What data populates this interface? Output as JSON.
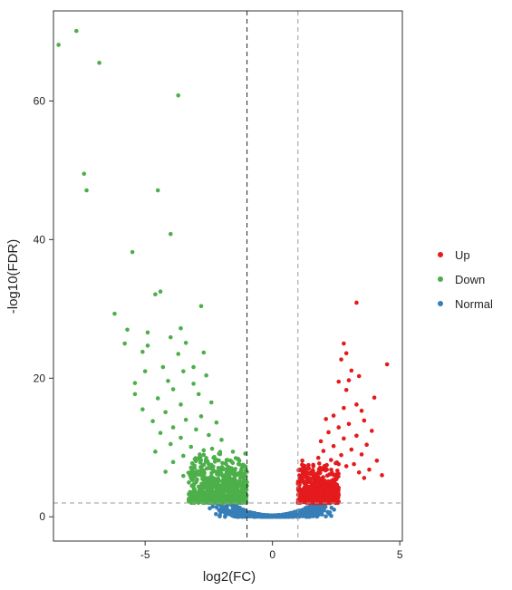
{
  "chart_data": {
    "type": "scatter",
    "title": "",
    "xlabel": "log2(FC)",
    "ylabel": "-log10(FDR)",
    "xlim": [
      -8.6,
      5.1
    ],
    "ylim": [
      -3.5,
      73
    ],
    "xticks": [
      -5,
      0,
      5
    ],
    "yticks": [
      0,
      20,
      40,
      60
    ],
    "vlines": [
      -1,
      1
    ],
    "hline": 2,
    "grid": false,
    "legend_position": "right",
    "series": [
      {
        "name": "Up",
        "color": "#e41a1c",
        "points": [
          [
            3.3,
            30.9
          ],
          [
            4.5,
            22.0
          ],
          [
            2.8,
            25.0
          ],
          [
            2.9,
            23.6
          ],
          [
            2.7,
            22.7
          ],
          [
            3.1,
            21.1
          ],
          [
            3.4,
            20.3
          ],
          [
            3.0,
            19.7
          ],
          [
            2.6,
            19.5
          ],
          [
            2.9,
            18.3
          ],
          [
            4.0,
            17.2
          ],
          [
            3.3,
            16.2
          ],
          [
            2.8,
            15.7
          ],
          [
            3.5,
            15.3
          ],
          [
            2.4,
            14.6
          ],
          [
            3.6,
            13.9
          ],
          [
            2.1,
            14.1
          ],
          [
            3.0,
            13.4
          ],
          [
            2.6,
            12.9
          ],
          [
            3.9,
            12.4
          ],
          [
            2.2,
            12.2
          ],
          [
            3.3,
            11.7
          ],
          [
            2.8,
            11.3
          ],
          [
            1.9,
            10.9
          ],
          [
            3.7,
            10.4
          ],
          [
            2.4,
            10.2
          ],
          [
            3.1,
            9.7
          ],
          [
            2.0,
            9.5
          ],
          [
            3.5,
            9.0
          ],
          [
            2.7,
            8.9
          ],
          [
            1.8,
            8.5
          ],
          [
            4.1,
            8.1
          ],
          [
            2.3,
            8.2
          ],
          [
            3.2,
            7.6
          ],
          [
            2.9,
            7.3
          ],
          [
            1.6,
            7.5
          ],
          [
            3.8,
            6.8
          ],
          [
            2.1,
            6.9
          ],
          [
            3.4,
            6.4
          ],
          [
            1.5,
            6.2
          ],
          [
            2.5,
            6.1
          ],
          [
            3.6,
            5.6
          ],
          [
            4.3,
            6.0
          ]
        ]
      },
      {
        "name": "Down",
        "color": "#4daf4a",
        "points": [
          [
            -7.7,
            70.1
          ],
          [
            -8.4,
            68.1
          ],
          [
            -6.8,
            65.5
          ],
          [
            -3.7,
            60.8
          ],
          [
            -7.4,
            49.5
          ],
          [
            -7.3,
            47.1
          ],
          [
            -4.5,
            47.1
          ],
          [
            -4.0,
            40.8
          ],
          [
            -5.5,
            38.2
          ],
          [
            -4.4,
            32.5
          ],
          [
            -4.6,
            32.1
          ],
          [
            -2.8,
            30.4
          ],
          [
            -6.2,
            29.3
          ],
          [
            -5.7,
            27.0
          ],
          [
            -5.8,
            25.0
          ],
          [
            -3.6,
            27.2
          ],
          [
            -4.0,
            25.9
          ],
          [
            -4.9,
            26.6
          ],
          [
            -4.9,
            24.7
          ],
          [
            -3.4,
            25.1
          ],
          [
            -2.7,
            23.7
          ],
          [
            -3.7,
            23.5
          ],
          [
            -5.1,
            23.8
          ],
          [
            -5.0,
            21.0
          ],
          [
            -4.3,
            21.6
          ],
          [
            -3.1,
            21.6
          ],
          [
            -3.5,
            21.0
          ],
          [
            -5.4,
            19.3
          ],
          [
            -3.1,
            19.2
          ],
          [
            -4.1,
            19.6
          ],
          [
            -2.6,
            20.4
          ],
          [
            -3.9,
            18.4
          ],
          [
            -2.9,
            17.7
          ],
          [
            -4.5,
            17.1
          ],
          [
            -5.4,
            17.7
          ],
          [
            -2.4,
            16.5
          ],
          [
            -3.6,
            16.2
          ],
          [
            -5.1,
            15.5
          ],
          [
            -4.2,
            15.1
          ],
          [
            -2.8,
            14.5
          ],
          [
            -3.4,
            14.0
          ],
          [
            -4.7,
            13.8
          ],
          [
            -2.2,
            13.6
          ],
          [
            -3.9,
            12.9
          ],
          [
            -3.0,
            12.6
          ],
          [
            -4.4,
            12.1
          ],
          [
            -2.5,
            11.8
          ],
          [
            -3.6,
            11.4
          ],
          [
            -2.0,
            11.1
          ],
          [
            -4.0,
            10.5
          ],
          [
            -3.2,
            10.1
          ],
          [
            -2.7,
            9.6
          ],
          [
            -4.6,
            9.4
          ],
          [
            -2.1,
            9.1
          ],
          [
            -3.5,
            8.8
          ],
          [
            -2.9,
            8.4
          ],
          [
            -1.8,
            8.2
          ],
          [
            -3.9,
            7.9
          ],
          [
            -2.4,
            7.5
          ],
          [
            -3.2,
            7.1
          ],
          [
            -1.6,
            7.0
          ],
          [
            -2.7,
            6.7
          ],
          [
            -4.2,
            6.5
          ],
          [
            -2.0,
            6.2
          ],
          [
            -3.5,
            5.9
          ],
          [
            -1.5,
            5.6
          ],
          [
            -2.6,
            5.4
          ],
          [
            -3.0,
            5.0
          ],
          [
            -1.3,
            4.8
          ],
          [
            -2.2,
            4.6
          ],
          [
            -1.9,
            4.2
          ],
          [
            -2.8,
            4.0
          ],
          [
            -1.4,
            3.7
          ],
          [
            -2.4,
            3.4
          ],
          [
            -1.7,
            3.1
          ],
          [
            -1.2,
            2.9
          ],
          [
            -2.0,
            2.6
          ],
          [
            -1.5,
            2.3
          ]
        ]
      },
      {
        "name": "Normal",
        "color": "#377eb8",
        "points": []
      }
    ]
  }
}
